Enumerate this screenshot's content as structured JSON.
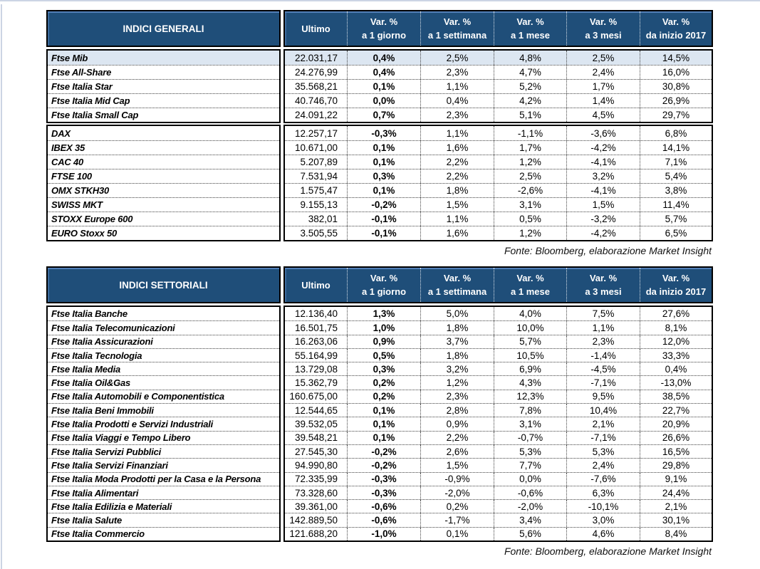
{
  "colors": {
    "header_bg": "#1F4E79",
    "header_text": "#FFFFFF",
    "highlight_row_bg": "#DCE6F1",
    "dotted_line": "#404040",
    "frame_line": "#CCD4E4"
  },
  "columns": {
    "ultimo": "Ultimo",
    "var_cols": [
      {
        "line1": "Var. %",
        "line2": "a 1 giorno"
      },
      {
        "line1": "Var. %",
        "line2": "a 1 settimana"
      },
      {
        "line1": "Var. %",
        "line2": "a 1 mese"
      },
      {
        "line1": "Var. %",
        "line2": "a 3 mesi"
      },
      {
        "line1": "Var. %",
        "line2": "da inizio 2017"
      }
    ]
  },
  "tables": [
    {
      "title": "INDICI GENERALI",
      "source_note": "Fonte: Bloomberg, elaborazione Market Insight",
      "blocks": [
        {
          "rows": [
            {
              "name": "Ftse Mib",
              "ultimo": "22.031,17",
              "vars": [
                "0,4%",
                "2,5%",
                "4,8%",
                "2,5%",
                "14,5%"
              ],
              "highlight": true
            },
            {
              "name": "Ftse All-Share",
              "ultimo": "24.276,99",
              "vars": [
                "0,4%",
                "2,3%",
                "4,7%",
                "2,4%",
                "16,0%"
              ]
            },
            {
              "name": "Ftse Italia Star",
              "ultimo": "35.568,21",
              "vars": [
                "0,1%",
                "1,1%",
                "5,2%",
                "1,7%",
                "30,8%"
              ]
            },
            {
              "name": "Ftse Italia Mid Cap",
              "ultimo": "40.746,70",
              "vars": [
                "0,0%",
                "0,4%",
                "4,2%",
                "1,4%",
                "26,9%"
              ]
            },
            {
              "name": "Ftse Italia Small Cap",
              "ultimo": "24.091,22",
              "vars": [
                "0,7%",
                "2,3%",
                "5,1%",
                "4,5%",
                "29,7%"
              ]
            }
          ]
        },
        {
          "rows": [
            {
              "name": "DAX",
              "ultimo": "12.257,17",
              "vars": [
                "-0,3%",
                "1,1%",
                "-1,1%",
                "-3,6%",
                "6,8%"
              ]
            },
            {
              "name": "IBEX 35",
              "ultimo": "10.671,00",
              "vars": [
                "0,1%",
                "1,6%",
                "1,7%",
                "-4,2%",
                "14,1%"
              ]
            },
            {
              "name": "CAC 40",
              "ultimo": "5.207,89",
              "vars": [
                "0,1%",
                "2,2%",
                "1,2%",
                "-4,1%",
                "7,1%"
              ]
            },
            {
              "name": "FTSE 100",
              "ultimo": "7.531,94",
              "vars": [
                "0,3%",
                "2,2%",
                "2,5%",
                "3,2%",
                "5,4%"
              ]
            },
            {
              "name": "OMX STKH30",
              "ultimo": "1.575,47",
              "vars": [
                "0,1%",
                "1,8%",
                "-2,6%",
                "-4,1%",
                "3,8%"
              ]
            },
            {
              "name": "SWISS MKT",
              "ultimo": "9.155,13",
              "vars": [
                "-0,2%",
                "1,5%",
                "3,1%",
                "1,5%",
                "11,4%"
              ]
            },
            {
              "name": "STOXX Europe 600",
              "ultimo": "382,01",
              "vars": [
                "-0,1%",
                "1,1%",
                "0,5%",
                "-3,2%",
                "5,7%"
              ]
            },
            {
              "name": "EURO Stoxx 50",
              "ultimo": "3.505,55",
              "vars": [
                "-0,1%",
                "1,6%",
                "1,2%",
                "-4,2%",
                "6,5%"
              ]
            }
          ]
        }
      ]
    },
    {
      "title": "INDICI SETTORIALI",
      "source_note": "Fonte: Bloomberg, elaborazione Market Insight",
      "blocks": [
        {
          "rows": [
            {
              "name": "Ftse Italia Banche",
              "ultimo": "12.136,40",
              "vars": [
                "1,3%",
                "5,0%",
                "4,0%",
                "7,5%",
                "27,6%"
              ]
            },
            {
              "name": "Ftse Italia Telecomunicazioni",
              "ultimo": "16.501,75",
              "vars": [
                "1,0%",
                "1,8%",
                "10,0%",
                "1,1%",
                "8,1%"
              ]
            },
            {
              "name": "Ftse Italia Assicurazioni",
              "ultimo": "16.263,06",
              "vars": [
                "0,9%",
                "3,7%",
                "5,7%",
                "2,3%",
                "12,0%"
              ]
            },
            {
              "name": "Ftse Italia Tecnologia",
              "ultimo": "55.164,99",
              "vars": [
                "0,5%",
                "1,8%",
                "10,5%",
                "-1,4%",
                "33,3%"
              ]
            },
            {
              "name": "Ftse Italia Media",
              "ultimo": "13.729,08",
              "vars": [
                "0,3%",
                "3,2%",
                "6,9%",
                "-4,5%",
                "0,4%"
              ]
            },
            {
              "name": "Ftse Italia Oil&Gas",
              "ultimo": "15.362,79",
              "vars": [
                "0,2%",
                "1,2%",
                "4,3%",
                "-7,1%",
                "-13,0%"
              ]
            },
            {
              "name": "Ftse Italia Automobili e Componentistica",
              "ultimo": "160.675,00",
              "vars": [
                "0,2%",
                "2,3%",
                "12,3%",
                "9,5%",
                "38,5%"
              ]
            },
            {
              "name": "Ftse Italia Beni Immobili",
              "ultimo": "12.544,65",
              "vars": [
                "0,1%",
                "2,8%",
                "7,8%",
                "10,4%",
                "22,7%"
              ]
            },
            {
              "name": "Ftse Italia Prodotti e Servizi Industriali",
              "ultimo": "39.532,05",
              "vars": [
                "0,1%",
                "0,9%",
                "3,1%",
                "2,1%",
                "20,9%"
              ]
            },
            {
              "name": "Ftse Italia Viaggi e Tempo Libero",
              "ultimo": "39.548,21",
              "vars": [
                "0,1%",
                "2,2%",
                "-0,7%",
                "-7,1%",
                "26,6%"
              ]
            },
            {
              "name": "Ftse Italia Servizi Pubblici",
              "ultimo": "27.545,30",
              "vars": [
                "-0,2%",
                "2,6%",
                "5,3%",
                "5,3%",
                "16,5%"
              ]
            },
            {
              "name": "Ftse Italia Servizi Finanziari",
              "ultimo": "94.990,80",
              "vars": [
                "-0,2%",
                "1,5%",
                "7,7%",
                "2,4%",
                "29,8%"
              ]
            },
            {
              "name": "Ftse Italia Moda Prodotti per la Casa e la Persona",
              "ultimo": "72.335,99",
              "vars": [
                "-0,3%",
                "-0,9%",
                "0,0%",
                "-7,6%",
                "9,1%"
              ]
            },
            {
              "name": "Ftse Italia Alimentari",
              "ultimo": "73.328,60",
              "vars": [
                "-0,3%",
                "-2,0%",
                "-0,6%",
                "6,3%",
                "24,4%"
              ]
            },
            {
              "name": "Ftse Italia Edilizia e Materiali",
              "ultimo": "39.361,00",
              "vars": [
                "-0,6%",
                "0,2%",
                "-2,0%",
                "-10,1%",
                "2,1%"
              ]
            },
            {
              "name": "Ftse Italia Salute",
              "ultimo": "142.889,50",
              "vars": [
                "-0,6%",
                "-1,7%",
                "3,4%",
                "3,0%",
                "30,1%"
              ]
            },
            {
              "name": "Ftse Italia Commercio",
              "ultimo": "121.688,20",
              "vars": [
                "-1,0%",
                "0,1%",
                "5,6%",
                "4,6%",
                "8,4%"
              ]
            }
          ]
        }
      ]
    }
  ]
}
